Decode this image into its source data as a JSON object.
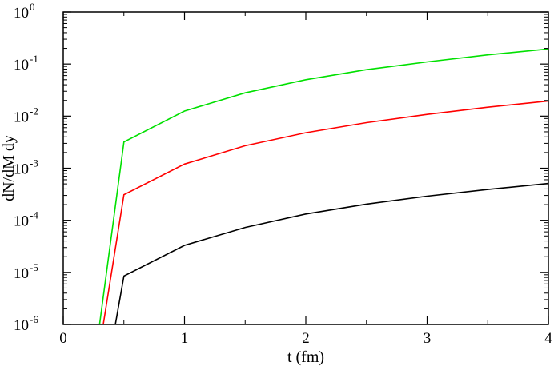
{
  "chart_data": {
    "type": "line",
    "title": "",
    "xlabel": "t (fm)",
    "ylabel": "dN/dM dy",
    "xlim": [
      0,
      4
    ],
    "ylim": [
      1e-06,
      1
    ],
    "yscale": "log",
    "grid": false,
    "legend": "none",
    "x_ticks": [
      {
        "value": 0,
        "label": "0"
      },
      {
        "value": 1,
        "label": "1"
      },
      {
        "value": 2,
        "label": "2"
      },
      {
        "value": 3,
        "label": "3"
      },
      {
        "value": 4,
        "label": "4"
      }
    ],
    "y_ticks": [
      {
        "value": 1e-06,
        "base": "10",
        "exp": "-6"
      },
      {
        "value": 1e-05,
        "base": "10",
        "exp": "-5"
      },
      {
        "value": 0.0001,
        "base": "10",
        "exp": "-4"
      },
      {
        "value": 0.001,
        "base": "10",
        "exp": "-3"
      },
      {
        "value": 0.01,
        "base": "10",
        "exp": "-2"
      },
      {
        "value": 0.1,
        "base": "10",
        "exp": "-1"
      },
      {
        "value": 1,
        "base": "10",
        "exp": "0"
      }
    ],
    "series": [
      {
        "color": "#00e000",
        "x": [
          0.3,
          0.5,
          1.0,
          1.5,
          2.0,
          2.5,
          3.0,
          3.5,
          4.0
        ],
        "y": [
          1e-06,
          0.0032,
          0.0125,
          0.028,
          0.05,
          0.078,
          0.11,
          0.15,
          0.195
        ]
      },
      {
        "color": "#ff0000",
        "x": [
          0.33,
          0.5,
          1.0,
          1.5,
          2.0,
          2.5,
          3.0,
          3.5,
          4.0
        ],
        "y": [
          1e-06,
          0.00031,
          0.0012,
          0.0027,
          0.0048,
          0.0075,
          0.0108,
          0.0148,
          0.0195
        ]
      },
      {
        "color": "#000000",
        "x": [
          0.43,
          0.5,
          1.0,
          1.5,
          2.0,
          2.5,
          3.0,
          3.5,
          4.0
        ],
        "y": [
          1e-06,
          8.5e-06,
          3.3e-05,
          7.3e-05,
          0.000132,
          0.000205,
          0.00029,
          0.00039,
          0.00051
        ]
      }
    ]
  }
}
